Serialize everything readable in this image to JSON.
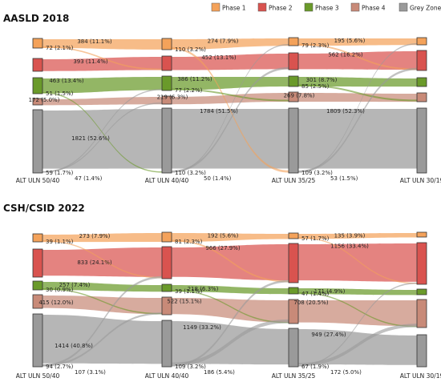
{
  "legend": [
    {
      "name": "Phase 1",
      "color": "#f4a25a"
    },
    {
      "name": "Phase 2",
      "color": "#d9534f"
    },
    {
      "name": "Phase 3",
      "color": "#6a9a2a"
    },
    {
      "name": "Phase 4",
      "color": "#c88a78"
    },
    {
      "name": "Grey Zone",
      "color": "#9a9a9a"
    }
  ],
  "chart_data": [
    {
      "type": "sankey",
      "title": "AASLD 2018",
      "stages": [
        "ALT ULN 50/40",
        "ALT ULN 40/40",
        "ALT ULN 35/25",
        "ALT ULN 30/19"
      ],
      "stay_labels": [
        [
          "384 (11.1%)",
          "393 (11.4%)",
          "463 (13.4%)",
          "172 (5.0%)",
          "1821 (52.6%)"
        ],
        [
          "274 (7.9%)",
          "452 (13.1%)",
          "386 (11.2%)",
          "219 (6.3%)",
          "1784 (51.5%)"
        ],
        [
          "195 (5.6%)",
          "562 (16.2%)",
          "301 (8.7%)",
          "269 (7.8%)",
          "1809 (52.3%)"
        ]
      ],
      "stay_values": [
        [
          384,
          393,
          463,
          172,
          1821
        ],
        [
          274,
          452,
          386,
          219,
          1784
        ],
        [
          195,
          562,
          301,
          269,
          1809
        ]
      ],
      "transitions": [
        {
          "from_stage": 0,
          "from": "Phase 1",
          "to": "Phase 2",
          "label": "72 (2.1%)",
          "value": 72
        },
        {
          "from_stage": 0,
          "from": "Phase 3",
          "to": "Grey Zone",
          "label": "51 (1.5%)",
          "value": 51
        },
        {
          "from_stage": 0,
          "from": "Grey Zone",
          "to": "Phase 4",
          "label": "59 (1.7%)",
          "value": 59
        },
        {
          "from_stage": 0,
          "from": "Grey Zone",
          "to": "Phase 3",
          "label": "47 (1.4%)",
          "value": 47
        },
        {
          "from_stage": 1,
          "from": "Phase 1",
          "to": "Grey Zone",
          "label": "110 (3.2%)",
          "value": 110
        },
        {
          "from_stage": 1,
          "from": "Phase 3",
          "to": "Phase 4",
          "label": "77 (2.2%)",
          "value": 77
        },
        {
          "from_stage": 1,
          "from": "Grey Zone",
          "to": "Phase 2",
          "label": "110 (3.2%)",
          "value": 110
        },
        {
          "from_stage": 1,
          "from": "Grey Zone",
          "to": "Phase 1",
          "label": "50 (1.4%)",
          "value": 50
        },
        {
          "from_stage": 2,
          "from": "Phase 1",
          "to": "Phase 2",
          "label": "79 (2.3%)",
          "value": 79
        },
        {
          "from_stage": 2,
          "from": "Phase 3",
          "to": "Phase 4",
          "label": "85 (2.5%)",
          "value": 85
        },
        {
          "from_stage": 2,
          "from": "Grey Zone",
          "to": "Phase 2",
          "label": "109 (3.2%)",
          "value": 109
        },
        {
          "from_stage": 2,
          "from": "Grey Zone",
          "to": "Phase 1",
          "label": "53 (1.5%)",
          "value": 53
        }
      ]
    },
    {
      "type": "sankey",
      "title": "CSH/CSID 2022",
      "stages": [
        "ALT ULN 50/40",
        "ALT ULN 40/40",
        "ALT ULN 35/25",
        "ALT ULN 30/19"
      ],
      "stay_labels": [
        [
          "273 (7.9%)",
          "833 (24.1%)",
          "257 (7.4%)",
          "415 (12.0%)",
          "1414 (40.8%)"
        ],
        [
          "192 (5.6%)",
          "966 (27.9%)",
          "218 (6.3%)",
          "522 (15.1%)",
          "1149 (33.2%)"
        ],
        [
          "135 (3.9%)",
          "1156 (33.4%)",
          "171 (4.9%)",
          "708 (20.5%)",
          "949 (27.4%)"
        ]
      ],
      "stay_values": [
        [
          273,
          833,
          257,
          415,
          1414
        ],
        [
          192,
          966,
          218,
          522,
          1149
        ],
        [
          135,
          1156,
          171,
          708,
          949
        ]
      ],
      "transitions": [
        {
          "from_stage": 0,
          "from": "Phase 1",
          "to": "Phase 2",
          "label": "39 (1.1%)",
          "value": 39
        },
        {
          "from_stage": 0,
          "from": "Phase 3",
          "to": "Phase 4",
          "label": "30 (0.9%)",
          "value": 30
        },
        {
          "from_stage": 0,
          "from": "Grey Zone",
          "to": "Phase 4",
          "label": "94 (2.7%)",
          "value": 94
        },
        {
          "from_stage": 0,
          "from": "Grey Zone",
          "to": "Phase 2",
          "label": "107 (3.1%)",
          "value": 107
        },
        {
          "from_stage": 1,
          "from": "Phase 1",
          "to": "Phase 2",
          "label": "81 (2.3%)",
          "value": 81
        },
        {
          "from_stage": 1,
          "from": "Phase 3",
          "to": "Phase 4",
          "label": "39 (1.1%)",
          "value": 39
        },
        {
          "from_stage": 1,
          "from": "Grey Zone",
          "to": "Phase 2",
          "label": "109 (3.2%)",
          "value": 109
        },
        {
          "from_stage": 1,
          "from": "Grey Zone",
          "to": "Phase 4",
          "label": "186 (5.4%)",
          "value": 186
        },
        {
          "from_stage": 2,
          "from": "Phase 1",
          "to": "Phase 2",
          "label": "57 (1.7%)",
          "value": 57
        },
        {
          "from_stage": 2,
          "from": "Phase 3",
          "to": "Phase 4",
          "label": "47 (1.4%)",
          "value": 47
        },
        {
          "from_stage": 2,
          "from": "Grey Zone",
          "to": "Phase 2",
          "label": "67 (1.9%)",
          "value": 67
        },
        {
          "from_stage": 2,
          "from": "Grey Zone",
          "to": "Phase 4",
          "label": "172 (5.0%)",
          "value": 172
        }
      ]
    }
  ]
}
